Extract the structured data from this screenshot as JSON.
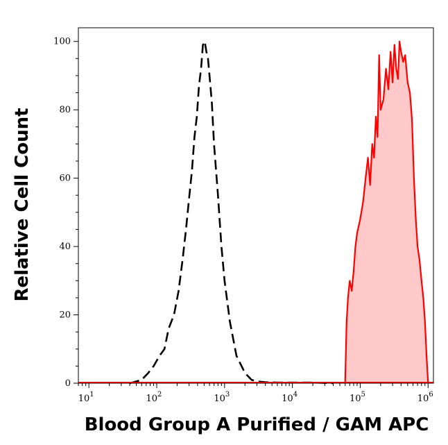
{
  "chart_data": {
    "type": "area",
    "title": "",
    "xlabel": "Blood Group A Purified / GAM APC",
    "ylabel": "Relative Cell Count",
    "x_scale": "log",
    "xlim": [
      7,
      1200000
    ],
    "ylim": [
      0,
      104
    ],
    "x_ticks": [
      {
        "value": 10,
        "base": "10",
        "exp": "1"
      },
      {
        "value": 100,
        "base": "10",
        "exp": "2"
      },
      {
        "value": 1000,
        "base": "10",
        "exp": "3"
      },
      {
        "value": 10000,
        "base": "10",
        "exp": "4"
      },
      {
        "value": 100000,
        "base": "10",
        "exp": "5"
      },
      {
        "value": 1000000,
        "base": "10",
        "exp": "6"
      }
    ],
    "y_ticks": [
      0,
      20,
      40,
      60,
      80,
      100
    ],
    "grid": false,
    "legend": "none",
    "series": [
      {
        "style": "dashed",
        "color": "#000000",
        "fill": "none",
        "x": [
          40,
          50,
          60,
          75,
          90,
          110,
          130,
          150,
          180,
          210,
          240,
          270,
          300,
          330,
          360,
          390,
          420,
          450,
          480,
          510,
          540,
          570,
          600,
          650,
          700,
          800,
          900,
          1000,
          1200,
          1500,
          2000,
          2500,
          3000,
          4000,
          6000,
          10000,
          20000,
          40000
        ],
        "y": [
          0,
          0.5,
          1,
          3,
          5,
          8,
          10,
          16,
          20,
          27,
          36,
          45,
          54,
          62,
          72,
          78,
          87,
          92,
          99,
          100,
          97,
          95,
          90,
          82,
          70,
          55,
          40,
          30,
          18,
          8,
          3,
          1,
          0.5,
          0.3,
          0.2,
          0.2,
          0.2,
          0
        ]
      },
      {
        "style": "solid",
        "color": "#ff0000",
        "fill": "#ffc9c9",
        "x": [
          60000,
          63000,
          66000,
          70000,
          75000,
          80000,
          85000,
          90000,
          100000,
          110000,
          120000,
          130000,
          140000,
          150000,
          160000,
          170000,
          180000,
          190000,
          200000,
          220000,
          240000,
          260000,
          280000,
          300000,
          320000,
          340000,
          360000,
          380000,
          400000,
          430000,
          460000,
          500000,
          540000,
          580000,
          620000,
          660000,
          700000,
          750000,
          800000,
          850000,
          900000,
          950000,
          1000000
        ],
        "y": [
          0,
          18,
          25,
          30,
          27,
          33,
          40,
          44,
          48,
          53,
          60,
          66,
          58,
          70,
          66,
          78,
          72,
          96,
          80,
          83,
          92,
          86,
          97,
          88,
          99,
          92,
          89,
          100,
          97,
          94,
          96,
          88,
          85,
          77,
          60,
          48,
          40,
          36,
          30,
          25,
          18,
          8,
          0
        ]
      }
    ]
  }
}
